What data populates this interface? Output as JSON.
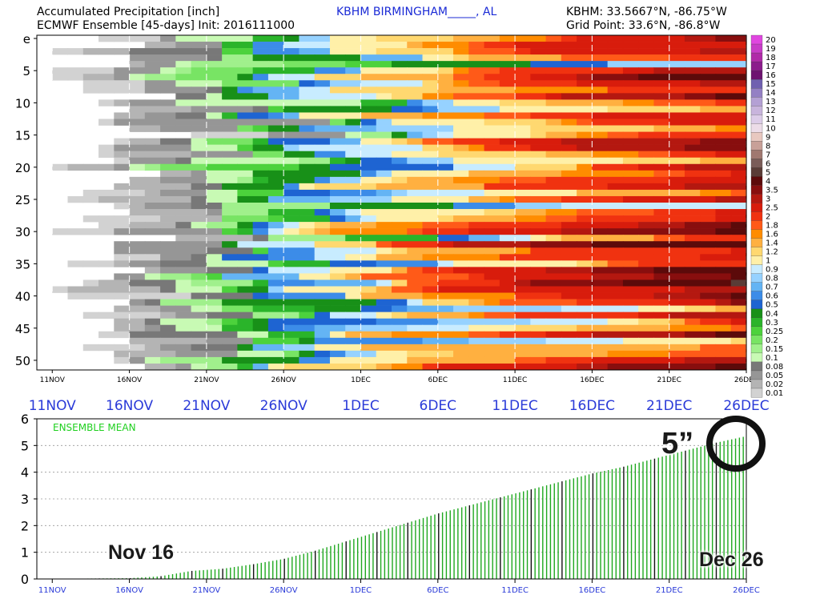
{
  "header": {
    "title": "Accumulated Precipitation [inch]",
    "subtitle": "ECMWF Ensemble [45-days] Init: 2016111000",
    "station": "KBHM BIRMINGHAM_____, AL",
    "coords": "KBHM: 33.5667°N, -86.75°W",
    "grid_point": "Grid Point: 33.6°N, -86.8°W"
  },
  "colorbar": {
    "labels": [
      "20",
      "19",
      "18",
      "17",
      "16",
      "15",
      "14",
      "13",
      "12",
      "11",
      "10",
      "9",
      "8",
      "7",
      "6",
      "5",
      "4",
      "3.5",
      "3",
      "2.5",
      "2",
      "1.8",
      "1.6",
      "1.4",
      "1.2",
      "1",
      "0.9",
      "0.8",
      "0.7",
      "0.6",
      "0.5",
      "0.4",
      "0.3",
      "0.25",
      "0.2",
      "0.15",
      "0.1",
      "0.08",
      "0.05",
      "0.02",
      "0.01"
    ],
    "colors": [
      "#e046e0",
      "#c83cc8",
      "#b02aa8",
      "#8c1c8c",
      "#6e1470",
      "#7060b0",
      "#9480c4",
      "#b4a0d4",
      "#c8b4dc",
      "#dccce8",
      "#ecdce8",
      "#e8c8c0",
      "#c8a098",
      "#a07870",
      "#7a5c58",
      "#5a3c36",
      "#5c0a0a",
      "#880e0e",
      "#b41810",
      "#d81c0c",
      "#f03210",
      "#ff5a18",
      "#ff8c00",
      "#ffb040",
      "#ffd870",
      "#fff0a8",
      "#c8ecff",
      "#96d2ff",
      "#64b4f4",
      "#3c8ce8",
      "#1e64d2",
      "#189018",
      "#2ab42a",
      "#4cd23c",
      "#78e464",
      "#a0f08c",
      "#c8fab4",
      "#787878",
      "#969696",
      "#b4b4b4",
      "#d2d2d2"
    ]
  },
  "annotations": {
    "nov16": "Nov 16",
    "dec26": "Dec 26",
    "five": "5”"
  },
  "icons": {
    "highlight": "circle-highlight-icon"
  },
  "chart_data": [
    {
      "type": "heatmap",
      "title": "Accumulated Precipitation [inch]",
      "x_ticks": [
        "11NOV",
        "16NOV",
        "21NOV",
        "26NOV",
        "1DEC",
        "6DEC",
        "11DEC",
        "16DEC",
        "21DEC",
        "26DEC"
      ],
      "x_range": [
        "2016-11-10",
        "2016-12-26"
      ],
      "y_ticks": [
        "e",
        "5",
        "10",
        "15",
        "20",
        "25",
        "30",
        "35",
        "40",
        "45",
        "50"
      ],
      "members": 51,
      "mean_row_label": "e",
      "value_thresholds": [
        0.01,
        0.02,
        0.05,
        0.08,
        0.1,
        0.15,
        0.2,
        0.25,
        0.3,
        0.4,
        0.5,
        0.6,
        0.7,
        0.8,
        0.9,
        1,
        1.2,
        1.4,
        1.6,
        1.8,
        2,
        2.5,
        3,
        3.5,
        4,
        5,
        6,
        7,
        8,
        9,
        10,
        11,
        12,
        13,
        14,
        15,
        16,
        17,
        18,
        19,
        20
      ]
    },
    {
      "type": "bar",
      "title": "ENSEMBLE MEAN",
      "x_ticks": [
        "11NOV",
        "16NOV",
        "21NOV",
        "26NOV",
        "1DEC",
        "6DEC",
        "11DEC",
        "16DEC",
        "21DEC",
        "26DEC"
      ],
      "x_range": [
        "2016-11-10",
        "2016-12-26"
      ],
      "ylim": [
        0,
        6
      ],
      "y_ticks": [
        "0",
        "1",
        "2",
        "3",
        "4",
        "5",
        "6"
      ],
      "grid": true,
      "x": [
        "2016-11-10",
        "2016-11-16",
        "2016-11-18",
        "2016-11-19",
        "2016-11-20",
        "2016-11-22",
        "2016-11-24",
        "2016-11-26",
        "2016-11-28",
        "2016-11-30",
        "2016-12-02",
        "2016-12-04",
        "2016-12-06",
        "2016-12-08",
        "2016-12-10",
        "2016-12-12",
        "2016-12-14",
        "2016-12-16",
        "2016-12-18",
        "2016-12-20",
        "2016-12-22",
        "2016-12-24",
        "2016-12-26"
      ],
      "values": [
        0,
        0.03,
        0.1,
        0.2,
        0.3,
        0.38,
        0.55,
        0.75,
        1.05,
        1.4,
        1.75,
        2.1,
        2.45,
        2.75,
        3.05,
        3.35,
        3.65,
        3.95,
        4.2,
        4.5,
        4.8,
        5.1,
        5.35
      ],
      "series_color": "#1fa81f"
    }
  ]
}
